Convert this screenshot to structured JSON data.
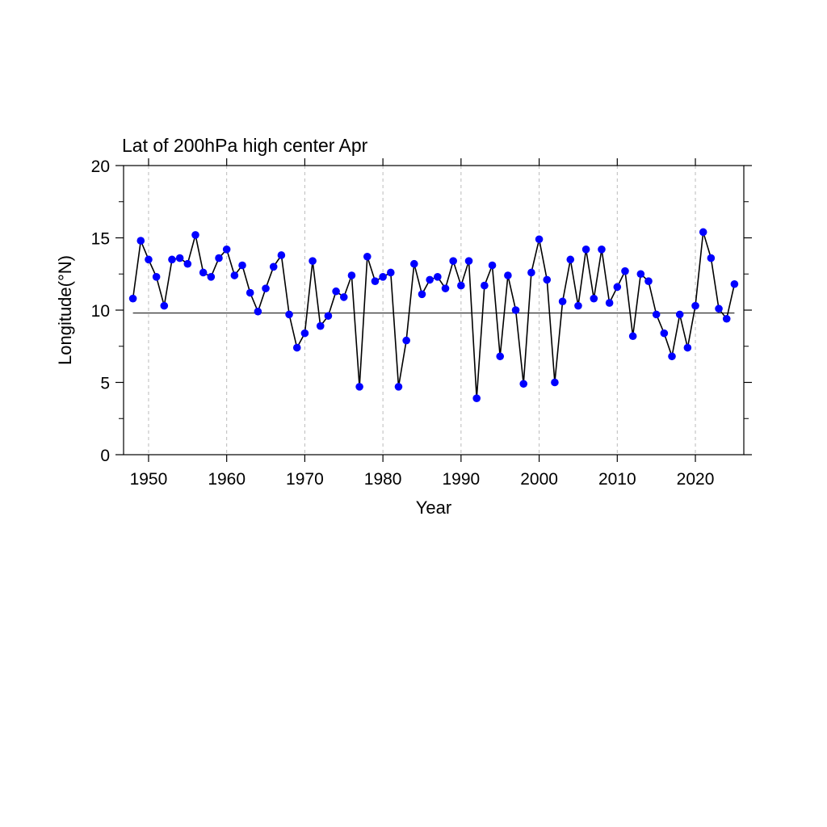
{
  "chart_data": {
    "type": "line",
    "title": "Lat of 200hPa high center Apr",
    "xlabel": "Year",
    "ylabel": "Longitude(°N)",
    "xlim": [
      1946.8,
      2026.2
    ],
    "ylim": [
      0,
      20
    ],
    "x_ticks": [
      1950,
      1960,
      1970,
      1980,
      1990,
      2000,
      2010,
      2020
    ],
    "y_ticks": [
      0,
      5,
      10,
      15,
      20
    ],
    "grid": "vertical dashed at x ticks",
    "reference_line": 9.8,
    "colors": {
      "line": "#000000",
      "marker": "#0000ff",
      "grid": "#bbbbbb"
    },
    "x": [
      1948,
      1949,
      1950,
      1951,
      1952,
      1953,
      1954,
      1955,
      1956,
      1957,
      1958,
      1959,
      1960,
      1961,
      1962,
      1963,
      1964,
      1965,
      1966,
      1967,
      1968,
      1969,
      1970,
      1971,
      1972,
      1973,
      1974,
      1975,
      1976,
      1977,
      1978,
      1979,
      1980,
      1981,
      1982,
      1983,
      1984,
      1985,
      1986,
      1987,
      1988,
      1989,
      1990,
      1991,
      1992,
      1993,
      1994,
      1995,
      1996,
      1997,
      1998,
      1999,
      2000,
      2001,
      2002,
      2003,
      2004,
      2005,
      2006,
      2007,
      2008,
      2009,
      2010,
      2011,
      2012,
      2013,
      2014,
      2015,
      2016,
      2017,
      2018,
      2019,
      2020,
      2021,
      2022,
      2023,
      2024,
      2025
    ],
    "y": [
      10.8,
      14.8,
      13.5,
      12.3,
      10.3,
      13.5,
      13.6,
      13.2,
      15.2,
      12.6,
      12.3,
      13.6,
      14.2,
      12.4,
      13.1,
      11.2,
      9.9,
      11.5,
      13.0,
      13.8,
      9.7,
      7.4,
      8.4,
      13.4,
      8.9,
      9.6,
      11.3,
      10.9,
      12.4,
      4.7,
      13.7,
      12.0,
      12.3,
      12.6,
      4.7,
      7.9,
      13.2,
      11.1,
      12.1,
      12.3,
      11.5,
      13.4,
      11.7,
      13.4,
      3.9,
      11.7,
      13.1,
      6.8,
      12.4,
      10.0,
      4.9,
      12.6,
      14.9,
      12.1,
      5.0,
      10.6,
      13.5,
      10.3,
      14.2,
      10.8,
      14.2,
      10.5,
      11.6,
      12.7,
      8.2,
      12.5,
      12.0,
      9.7,
      8.4,
      6.8,
      9.7,
      7.4,
      10.3,
      15.4,
      13.6,
      10.1,
      9.4,
      11.8
    ]
  }
}
